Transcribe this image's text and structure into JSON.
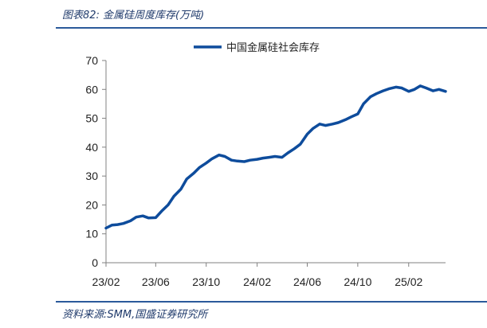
{
  "figure": {
    "title": "图表82:  金属硅周度库存(万吨)",
    "source": "资料来源:SMM,国盛证券研究所"
  },
  "chart_data": {
    "type": "line",
    "title": "图表82:  金属硅周度库存(万吨)",
    "xlabel": "",
    "ylabel": "",
    "ylim": [
      0,
      70
    ],
    "yticks": [
      0,
      10,
      20,
      30,
      40,
      50,
      60,
      70
    ],
    "xticks": [
      "23/02",
      "23/06",
      "23/10",
      "24/02",
      "24/06",
      "24/10",
      "25/02"
    ],
    "grid": false,
    "legend_position": "top",
    "colors": {
      "series": "#0e4c9c",
      "axis": "#808080"
    },
    "series": [
      {
        "name": "中国金属硅社会库存",
        "x": [
          "2023-02-01",
          "2023-02-15",
          "2023-03-01",
          "2023-03-15",
          "2023-04-01",
          "2023-04-15",
          "2023-05-01",
          "2023-05-15",
          "2023-06-01",
          "2023-06-15",
          "2023-07-01",
          "2023-07-15",
          "2023-08-01",
          "2023-08-15",
          "2023-09-01",
          "2023-09-15",
          "2023-10-01",
          "2023-10-15",
          "2023-11-01",
          "2023-11-15",
          "2023-12-01",
          "2023-12-15",
          "2024-01-01",
          "2024-01-15",
          "2024-02-01",
          "2024-02-15",
          "2024-03-01",
          "2024-03-15",
          "2024-04-01",
          "2024-04-15",
          "2024-05-01",
          "2024-05-15",
          "2024-06-01",
          "2024-06-15",
          "2024-07-01",
          "2024-07-15",
          "2024-08-01",
          "2024-08-15",
          "2024-09-01",
          "2024-09-15",
          "2024-10-01",
          "2024-10-15",
          "2024-11-01",
          "2024-11-15",
          "2024-12-01",
          "2024-12-15",
          "2025-01-01",
          "2025-01-15",
          "2025-02-01",
          "2025-02-15",
          "2025-03-01",
          "2025-03-15",
          "2025-04-01",
          "2025-04-15",
          "2025-05-01"
        ],
        "values": [
          12.0,
          13.0,
          13.2,
          13.6,
          14.5,
          15.8,
          16.2,
          15.5,
          15.6,
          17.8,
          20.0,
          23.0,
          25.5,
          29.0,
          31.0,
          33.0,
          34.5,
          36.0,
          37.3,
          36.8,
          35.5,
          35.2,
          35.0,
          35.5,
          35.8,
          36.2,
          36.5,
          36.8,
          36.5,
          38.0,
          39.5,
          41.0,
          44.5,
          46.5,
          48.0,
          47.5,
          48.0,
          48.5,
          49.5,
          50.5,
          51.5,
          55.0,
          57.5,
          58.5,
          59.5,
          60.2,
          60.8,
          60.5,
          59.3,
          60.0,
          61.2,
          60.5,
          59.5,
          60.0,
          59.3
        ]
      }
    ]
  }
}
